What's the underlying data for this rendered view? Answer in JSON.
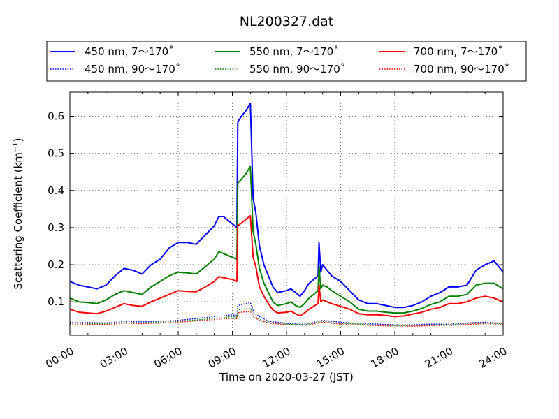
{
  "chart_data": {
    "type": "line",
    "title": "NL200327.dat",
    "xlabel": "Time on 2020-03-27 (JST)",
    "ylabel": "Scattering Coefficient (km",
    "ylabel_sup": "−1",
    "ylabel_end": ")",
    "xlim": [
      0,
      24
    ],
    "ylim": [
      0.01,
      0.665
    ],
    "x_ticks": [
      0,
      3,
      6,
      9,
      12,
      15,
      18,
      21,
      24
    ],
    "x_tick_labels": [
      "00:00",
      "03:00",
      "06:00",
      "09:00",
      "12:00",
      "15:00",
      "18:00",
      "21:00",
      "24:00"
    ],
    "y_ticks": [
      0.1,
      0.2,
      0.3,
      0.4,
      0.5,
      0.6
    ],
    "y_tick_labels": [
      "0.1",
      "0.2",
      "0.3",
      "0.4",
      "0.5",
      "0.6"
    ],
    "grid": true,
    "legend_position": "top, above plot",
    "legend_columns": 3,
    "series": [
      {
        "name": "450 nm, 7～170˚",
        "color": "#0000ff",
        "style": "solid",
        "x": [
          0,
          0.5,
          1,
          1.5,
          2,
          2.5,
          3,
          3.5,
          4,
          4.5,
          5,
          5.5,
          6,
          6.5,
          7,
          7.5,
          8,
          8.25,
          8.5,
          9,
          9.25,
          9.3,
          9.5,
          9.75,
          10,
          10.15,
          10.3,
          10.5,
          10.75,
          11,
          11.25,
          11.5,
          12,
          12.25,
          12.5,
          12.75,
          13,
          13.25,
          13.5,
          13.75,
          13.8,
          13.9,
          14,
          14.25,
          14.5,
          15,
          15.5,
          16,
          16.5,
          17,
          17.5,
          18,
          18.5,
          19,
          19.5,
          20,
          20.5,
          21,
          21.5,
          22,
          22.5,
          23,
          23.5,
          24
        ],
        "y": [
          0.155,
          0.145,
          0.14,
          0.135,
          0.145,
          0.17,
          0.19,
          0.185,
          0.175,
          0.2,
          0.215,
          0.245,
          0.26,
          0.26,
          0.255,
          0.28,
          0.305,
          0.33,
          0.33,
          0.31,
          0.3,
          0.585,
          0.6,
          0.615,
          0.635,
          0.38,
          0.34,
          0.25,
          0.2,
          0.17,
          0.14,
          0.125,
          0.13,
          0.135,
          0.125,
          0.115,
          0.13,
          0.15,
          0.16,
          0.17,
          0.26,
          0.18,
          0.2,
          0.185,
          0.17,
          0.155,
          0.13,
          0.105,
          0.095,
          0.095,
          0.09,
          0.085,
          0.085,
          0.09,
          0.1,
          0.115,
          0.125,
          0.14,
          0.14,
          0.145,
          0.185,
          0.2,
          0.21,
          0.18
        ]
      },
      {
        "name": "450 nm, 90～170˚",
        "color": "#0000ff",
        "style": "dotted",
        "x": [
          0,
          1,
          2,
          3,
          4,
          5,
          6,
          7,
          8,
          9,
          9.25,
          9.3,
          9.5,
          10,
          10.2,
          10.5,
          11,
          12,
          13,
          14,
          15,
          16,
          17,
          18,
          19,
          20,
          21,
          22,
          23,
          24
        ],
        "y": [
          0.045,
          0.044,
          0.043,
          0.047,
          0.046,
          0.048,
          0.05,
          0.055,
          0.06,
          0.065,
          0.063,
          0.09,
          0.092,
          0.098,
          0.07,
          0.06,
          0.048,
          0.042,
          0.04,
          0.05,
          0.045,
          0.042,
          0.04,
          0.038,
          0.038,
          0.04,
          0.04,
          0.043,
          0.045,
          0.043
        ]
      },
      {
        "name": "550 nm, 7～170˚",
        "color": "#008000",
        "style": "solid",
        "x": [
          0,
          0.5,
          1,
          1.5,
          2,
          2.5,
          3,
          3.5,
          4,
          4.5,
          5,
          5.5,
          6,
          6.5,
          7,
          7.5,
          8,
          8.25,
          8.5,
          9,
          9.25,
          9.3,
          9.5,
          9.75,
          10,
          10.15,
          10.3,
          10.5,
          10.75,
          11,
          11.25,
          11.5,
          12,
          12.25,
          12.5,
          12.75,
          13,
          13.25,
          13.5,
          13.75,
          13.8,
          13.9,
          14,
          14.25,
          14.5,
          15,
          15.5,
          16,
          16.5,
          17,
          17.5,
          18,
          18.5,
          19,
          19.5,
          20,
          20.5,
          21,
          21.5,
          22,
          22.5,
          23,
          23.5,
          24
        ],
        "y": [
          0.11,
          0.1,
          0.098,
          0.095,
          0.105,
          0.12,
          0.13,
          0.125,
          0.12,
          0.14,
          0.155,
          0.17,
          0.18,
          0.178,
          0.175,
          0.195,
          0.215,
          0.235,
          0.23,
          0.22,
          0.215,
          0.42,
          0.43,
          0.445,
          0.465,
          0.29,
          0.255,
          0.19,
          0.15,
          0.125,
          0.1,
          0.09,
          0.095,
          0.1,
          0.09,
          0.085,
          0.095,
          0.11,
          0.12,
          0.13,
          0.195,
          0.135,
          0.145,
          0.14,
          0.13,
          0.115,
          0.1,
          0.08,
          0.075,
          0.075,
          0.072,
          0.07,
          0.07,
          0.075,
          0.082,
          0.093,
          0.1,
          0.115,
          0.115,
          0.12,
          0.145,
          0.15,
          0.15,
          0.135
        ]
      },
      {
        "name": "550 nm, 90～170˚",
        "color": "#008000",
        "style": "dotted",
        "x": [
          0,
          1,
          2,
          3,
          4,
          5,
          6,
          7,
          8,
          9,
          9.25,
          9.3,
          9.5,
          10,
          10.2,
          10.5,
          11,
          12,
          13,
          14,
          15,
          16,
          17,
          18,
          19,
          20,
          21,
          22,
          23,
          24
        ],
        "y": [
          0.042,
          0.041,
          0.04,
          0.044,
          0.043,
          0.045,
          0.047,
          0.051,
          0.055,
          0.06,
          0.058,
          0.078,
          0.08,
          0.082,
          0.062,
          0.053,
          0.045,
          0.04,
          0.038,
          0.047,
          0.042,
          0.04,
          0.038,
          0.036,
          0.036,
          0.038,
          0.038,
          0.041,
          0.043,
          0.041
        ]
      },
      {
        "name": "700 nm, 7～170˚",
        "color": "#ff0000",
        "style": "solid",
        "x": [
          0,
          0.5,
          1,
          1.5,
          2,
          2.5,
          3,
          3.5,
          4,
          4.5,
          5,
          5.5,
          6,
          6.5,
          7,
          7.5,
          8,
          8.25,
          8.5,
          9,
          9.25,
          9.3,
          9.5,
          9.75,
          10,
          10.15,
          10.3,
          10.5,
          10.75,
          11,
          11.25,
          11.5,
          12,
          12.25,
          12.5,
          12.75,
          13,
          13.25,
          13.5,
          13.75,
          13.8,
          13.9,
          14,
          14.25,
          14.5,
          15,
          15.5,
          16,
          16.5,
          17,
          17.5,
          18,
          18.5,
          19,
          19.5,
          20,
          20.5,
          21,
          21.5,
          22,
          22.5,
          23,
          23.5,
          24
        ],
        "y": [
          0.08,
          0.072,
          0.07,
          0.068,
          0.075,
          0.085,
          0.095,
          0.09,
          0.088,
          0.1,
          0.11,
          0.12,
          0.13,
          0.128,
          0.127,
          0.14,
          0.155,
          0.168,
          0.165,
          0.16,
          0.155,
          0.305,
          0.312,
          0.322,
          0.332,
          0.22,
          0.195,
          0.14,
          0.115,
          0.095,
          0.078,
          0.07,
          0.072,
          0.075,
          0.068,
          0.062,
          0.07,
          0.08,
          0.088,
          0.095,
          0.145,
          0.1,
          0.105,
          0.1,
          0.095,
          0.088,
          0.08,
          0.068,
          0.065,
          0.065,
          0.063,
          0.06,
          0.062,
          0.067,
          0.072,
          0.08,
          0.085,
          0.095,
          0.095,
          0.1,
          0.11,
          0.115,
          0.11,
          0.1
        ]
      },
      {
        "name": "700 nm, 90～170˚",
        "color": "#ff0000",
        "style": "dotted",
        "x": [
          0,
          1,
          2,
          3,
          4,
          5,
          6,
          7,
          8,
          9,
          9.25,
          9.3,
          9.5,
          10,
          10.2,
          10.5,
          11,
          12,
          13,
          14,
          15,
          16,
          17,
          18,
          19,
          20,
          21,
          22,
          23,
          24
        ],
        "y": [
          0.04,
          0.039,
          0.038,
          0.042,
          0.041,
          0.043,
          0.045,
          0.049,
          0.052,
          0.056,
          0.055,
          0.07,
          0.072,
          0.074,
          0.058,
          0.05,
          0.043,
          0.038,
          0.036,
          0.045,
          0.04,
          0.038,
          0.036,
          0.034,
          0.034,
          0.036,
          0.036,
          0.039,
          0.041,
          0.039
        ]
      }
    ]
  }
}
